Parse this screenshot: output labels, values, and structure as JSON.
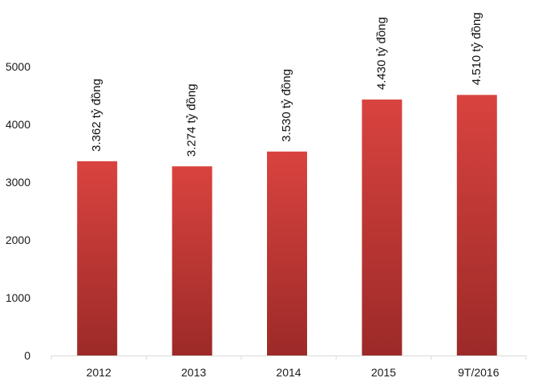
{
  "chart_data": {
    "type": "bar",
    "categories": [
      "2012",
      "2013",
      "2014",
      "2015",
      "9T/2016"
    ],
    "values": [
      3362,
      3274,
      3530,
      4430,
      4510
    ],
    "data_labels": [
      "3.362 tỷ đồng",
      "3.274 tỷ đồng",
      "3.530 tỷ đồng",
      "4.430 tỷ đồng",
      "4.510 tỷ đồng"
    ],
    "title": "",
    "xlabel": "",
    "ylabel": "",
    "ylim": [
      0,
      5000
    ],
    "yticks": [
      0,
      1000,
      2000,
      3000,
      4000,
      5000
    ],
    "grid": false,
    "legend": false,
    "colors": {
      "bar_top": "#d9433f",
      "bar_bottom": "#9c2a28",
      "axis": "#d9d9d9"
    }
  }
}
